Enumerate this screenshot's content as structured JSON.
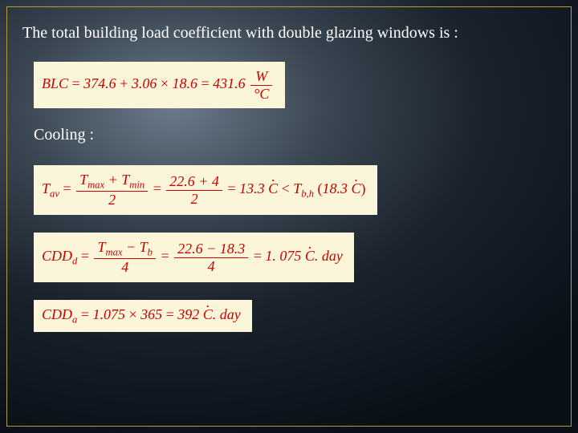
{
  "slide": {
    "background": {
      "gradient_stops": [
        "#6b7a8a",
        "#3a4652",
        "#1a222c",
        "#0a1018"
      ],
      "border_color": "#b89a3a"
    },
    "heading": "The total building load coefficient with double glazing windows is  :",
    "subheading": "Cooling :",
    "text_colors": {
      "heading": "#ffffff",
      "formula": "#cc0000"
    },
    "formula_box_bg": "#fbf6d9",
    "font_family": "Georgia / Times New Roman",
    "formula_fontsize_pt": 14,
    "heading_fontsize_pt": 15,
    "formulas": [
      {
        "id": "blc",
        "plain": "BLC = 374.6 + 3.06 × 18.6 = 431.6 W/°C",
        "lhs": "BLC",
        "terms": [
          "374.6",
          "+",
          "3.06",
          "×",
          "18.6"
        ],
        "result_value": "431.6",
        "result_unit_num": "W",
        "result_unit_den": "°C"
      },
      {
        "id": "tav",
        "plain": "T_av = (T_max + T_min)/2 = (22.6 + 4)/2 = 13.3 Ċ < T_b,h (18.3 Ċ)",
        "lhs": "T",
        "lhs_sub": "av",
        "sym_num": "T_max + T_min",
        "sym_den": "2",
        "val_num": "22.6 + 4",
        "val_den": "2",
        "mid_value": "13.3",
        "mid_unit": "Ċ",
        "cmp": "<",
        "rhs": "T",
        "rhs_sub": "b,h",
        "rhs_paren_value": "18.3",
        "rhs_paren_unit": "Ċ",
        "Tmax_sub": "max",
        "Tmin_sub": "min"
      },
      {
        "id": "cddd",
        "plain": "CDD_d = (T_max − T_b)/4 = (22.6 − 18.3)/4 = 1.075 Ċ.day",
        "lhs": "CDD",
        "lhs_sub": "d",
        "sym_num": "T_max − T_b",
        "sym_den": "4",
        "val_num": "22.6 − 18.3",
        "val_den": "4",
        "result_value": "1. 075",
        "result_unit_c": "Ċ",
        "result_unit_suffix": ". day",
        "Tmax_sub": "max",
        "Tb_sub": "b"
      },
      {
        "id": "cdda",
        "plain": "CDD_a = 1.075 × 365 = 392 Ċ.day",
        "lhs": "CDD",
        "lhs_sub": "a",
        "terms": [
          "1.075",
          "×",
          "365"
        ],
        "result_value": "392",
        "result_unit_c": "Ċ",
        "result_unit_suffix": ". day"
      }
    ]
  }
}
